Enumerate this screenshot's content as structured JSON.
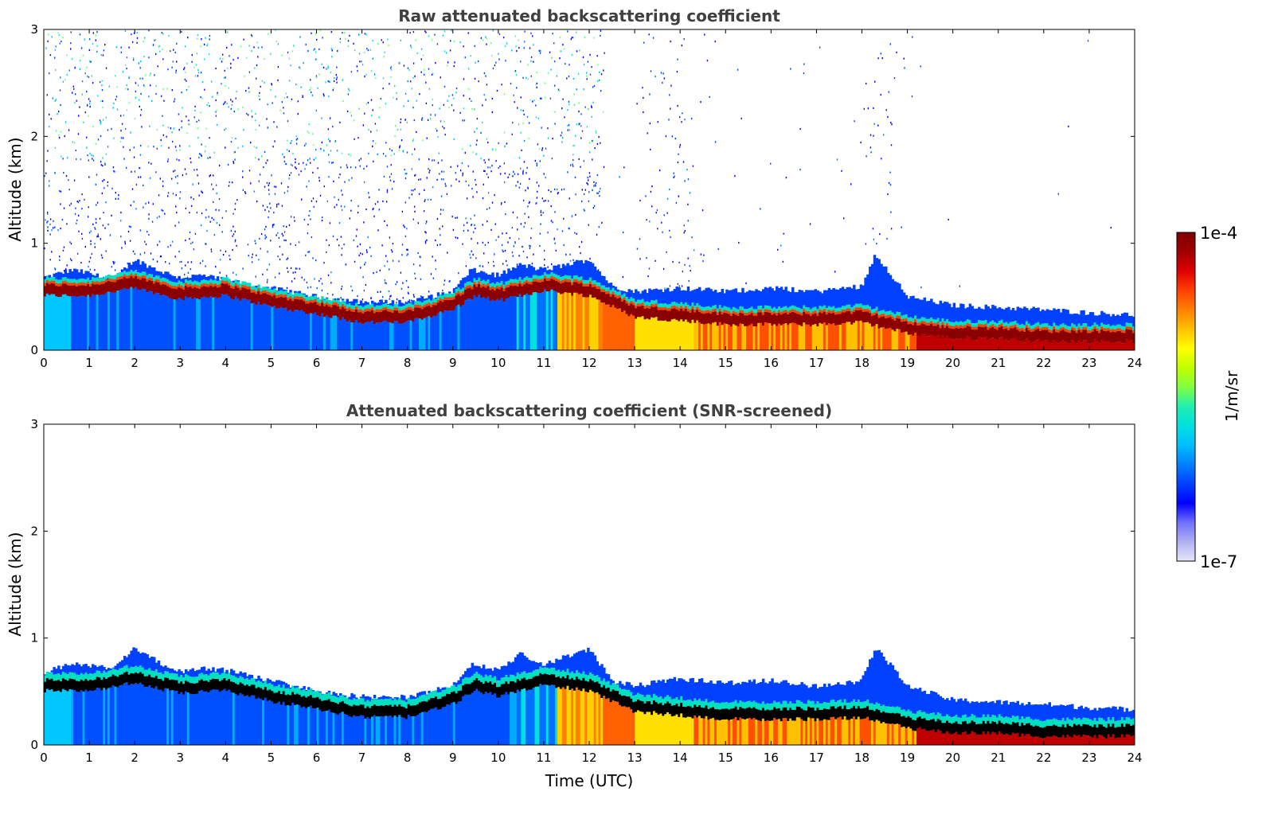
{
  "chart_data": [
    {
      "type": "heatmap",
      "title": "Raw attenuated backscattering coefficient",
      "xlabel": "",
      "ylabel": "Altitude (km)",
      "xlim": [
        0,
        24
      ],
      "ylim": [
        0,
        3
      ],
      "x_ticks": [
        "0",
        "1",
        "2",
        "3",
        "4",
        "5",
        "6",
        "7",
        "8",
        "9",
        "10",
        "11",
        "12",
        "13",
        "14",
        "15",
        "16",
        "17",
        "18",
        "19",
        "20",
        "21",
        "22",
        "23",
        "24"
      ],
      "y_ticks": [
        "0",
        "1",
        "2",
        "3"
      ],
      "noise": "dense",
      "layer_top_km": {
        "time_utc": [
          0,
          0.6,
          1,
          1.5,
          2,
          2.5,
          3,
          3.5,
          4,
          5,
          6,
          7,
          8,
          9,
          9.4,
          10,
          10.5,
          11,
          12,
          12.5,
          13,
          14,
          15,
          16,
          17,
          18,
          18.3,
          19,
          20,
          21,
          22,
          23,
          24
        ],
        "altitude_km": [
          0.68,
          0.75,
          0.72,
          0.65,
          0.85,
          0.75,
          0.68,
          0.7,
          0.65,
          0.58,
          0.5,
          0.45,
          0.45,
          0.55,
          0.75,
          0.7,
          0.8,
          0.75,
          0.85,
          0.6,
          0.55,
          0.58,
          0.55,
          0.58,
          0.55,
          0.6,
          0.9,
          0.5,
          0.42,
          0.4,
          0.38,
          0.35,
          0.33
        ]
      },
      "peak_layer_km": {
        "time_utc": [
          0,
          1,
          2,
          3,
          4,
          5,
          6,
          7,
          8,
          9,
          9.5,
          10,
          11,
          12,
          13,
          14,
          15,
          16,
          17,
          18,
          19,
          20,
          21,
          22,
          23,
          24
        ],
        "altitude_km": [
          0.55,
          0.55,
          0.62,
          0.52,
          0.55,
          0.45,
          0.38,
          0.3,
          0.3,
          0.42,
          0.55,
          0.5,
          0.6,
          0.55,
          0.35,
          0.32,
          0.28,
          0.28,
          0.28,
          0.3,
          0.2,
          0.15,
          0.15,
          0.12,
          0.12,
          0.12
        ]
      }
    },
    {
      "type": "heatmap",
      "title": "Attenuated backscattering coefficient (SNR-screened)",
      "xlabel": "Time (UTC)",
      "ylabel": "Altitude (km)",
      "xlim": [
        0,
        24
      ],
      "ylim": [
        0,
        3
      ],
      "x_ticks": [
        "0",
        "1",
        "2",
        "3",
        "4",
        "5",
        "6",
        "7",
        "8",
        "9",
        "10",
        "11",
        "12",
        "13",
        "14",
        "15",
        "16",
        "17",
        "18",
        "19",
        "20",
        "21",
        "22",
        "23",
        "24"
      ],
      "y_ticks": [
        "0",
        "1",
        "2",
        "3"
      ],
      "noise": "none",
      "layer_top_km": {
        "time_utc": [
          0,
          0.6,
          1,
          1.5,
          2,
          2.5,
          3,
          3.5,
          4,
          5,
          6,
          7,
          8,
          9,
          9.4,
          10,
          10.5,
          11,
          12,
          12.5,
          13,
          14,
          15,
          16,
          17,
          18,
          18.3,
          19,
          20,
          21,
          22,
          23,
          24
        ],
        "altitude_km": [
          0.68,
          0.75,
          0.75,
          0.7,
          0.9,
          0.78,
          0.68,
          0.72,
          0.7,
          0.6,
          0.5,
          0.45,
          0.45,
          0.55,
          0.75,
          0.7,
          0.85,
          0.75,
          0.9,
          0.6,
          0.55,
          0.62,
          0.58,
          0.6,
          0.55,
          0.6,
          0.92,
          0.55,
          0.42,
          0.4,
          0.38,
          0.35,
          0.33
        ]
      },
      "peak_layer_km": {
        "time_utc": [
          0,
          1,
          2,
          3,
          4,
          5,
          6,
          7,
          8,
          9,
          9.5,
          10,
          11,
          12,
          13,
          14,
          15,
          16,
          17,
          18,
          19,
          20,
          21,
          22,
          23,
          24
        ],
        "altitude_km": [
          0.55,
          0.55,
          0.62,
          0.52,
          0.55,
          0.45,
          0.38,
          0.3,
          0.3,
          0.42,
          0.55,
          0.5,
          0.6,
          0.55,
          0.35,
          0.32,
          0.28,
          0.28,
          0.28,
          0.3,
          0.2,
          0.15,
          0.15,
          0.12,
          0.12,
          0.12
        ]
      }
    }
  ],
  "colorbar": {
    "label": "1/m/sr",
    "max_label": "1e-4",
    "min_label": "1e-7",
    "colors": [
      "#e6e6fa",
      "#b0b0f0",
      "#7070ff",
      "#0000ff",
      "#0040ff",
      "#0080ff",
      "#00bfff",
      "#00e0e0",
      "#20f0b0",
      "#80ff40",
      "#c0ff00",
      "#ffff00",
      "#ffc000",
      "#ff8000",
      "#ff4000",
      "#e00000",
      "#a00000",
      "#800000"
    ]
  }
}
